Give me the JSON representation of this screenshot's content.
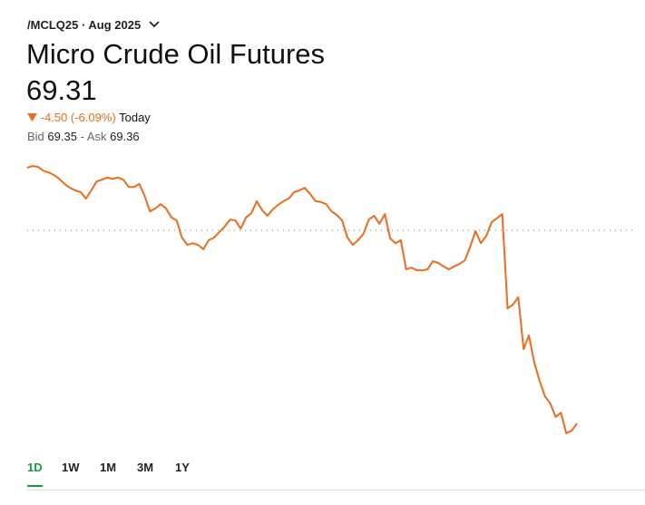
{
  "header": {
    "symbol": "/MCLQ25 · Aug 2025",
    "title": "Micro Crude Oil Futures",
    "price": "69.31",
    "change": "-4.50 (-6.09%)",
    "period": "Today",
    "bid_label": "Bid",
    "bid": "69.35",
    "ask_label": "- Ask",
    "ask": "69.36"
  },
  "chart_data": {
    "type": "line",
    "color": "#f26b1d",
    "ylim": [
      68.9,
      75.4
    ],
    "previous_close": 73.81,
    "values": [
      75.27,
      75.31,
      75.29,
      75.2,
      75.16,
      75.1,
      75.01,
      74.89,
      74.8,
      74.74,
      74.7,
      74.55,
      74.74,
      74.95,
      74.99,
      75.04,
      75.01,
      75.04,
      74.99,
      74.82,
      74.82,
      74.89,
      74.61,
      74.25,
      74.32,
      74.42,
      74.32,
      74.11,
      74.04,
      73.64,
      73.47,
      73.51,
      73.47,
      73.37,
      73.58,
      73.64,
      73.77,
      73.9,
      74.06,
      74.04,
      73.85,
      74.11,
      74.21,
      74.49,
      74.28,
      74.15,
      74.3,
      74.4,
      74.49,
      74.55,
      74.7,
      74.74,
      74.8,
      74.66,
      74.49,
      74.47,
      74.42,
      74.25,
      74.17,
      74.04,
      73.64,
      73.47,
      73.58,
      73.73,
      74.06,
      74.15,
      73.96,
      74.19,
      73.62,
      73.51,
      73.58,
      72.9,
      72.94,
      72.88,
      72.88,
      72.9,
      73.09,
      73.05,
      72.97,
      72.9,
      72.97,
      73.03,
      73.11,
      73.43,
      73.79,
      73.51,
      73.68,
      74.0,
      74.09,
      74.19,
      71.99,
      72.08,
      72.25,
      71.04,
      71.36,
      70.73,
      70.3,
      69.94,
      69.77,
      69.46,
      69.56,
      69.08,
      69.14,
      69.31
    ]
  },
  "tabs": [
    "1D",
    "1W",
    "1M",
    "3M",
    "1Y"
  ],
  "active_tab": 0
}
